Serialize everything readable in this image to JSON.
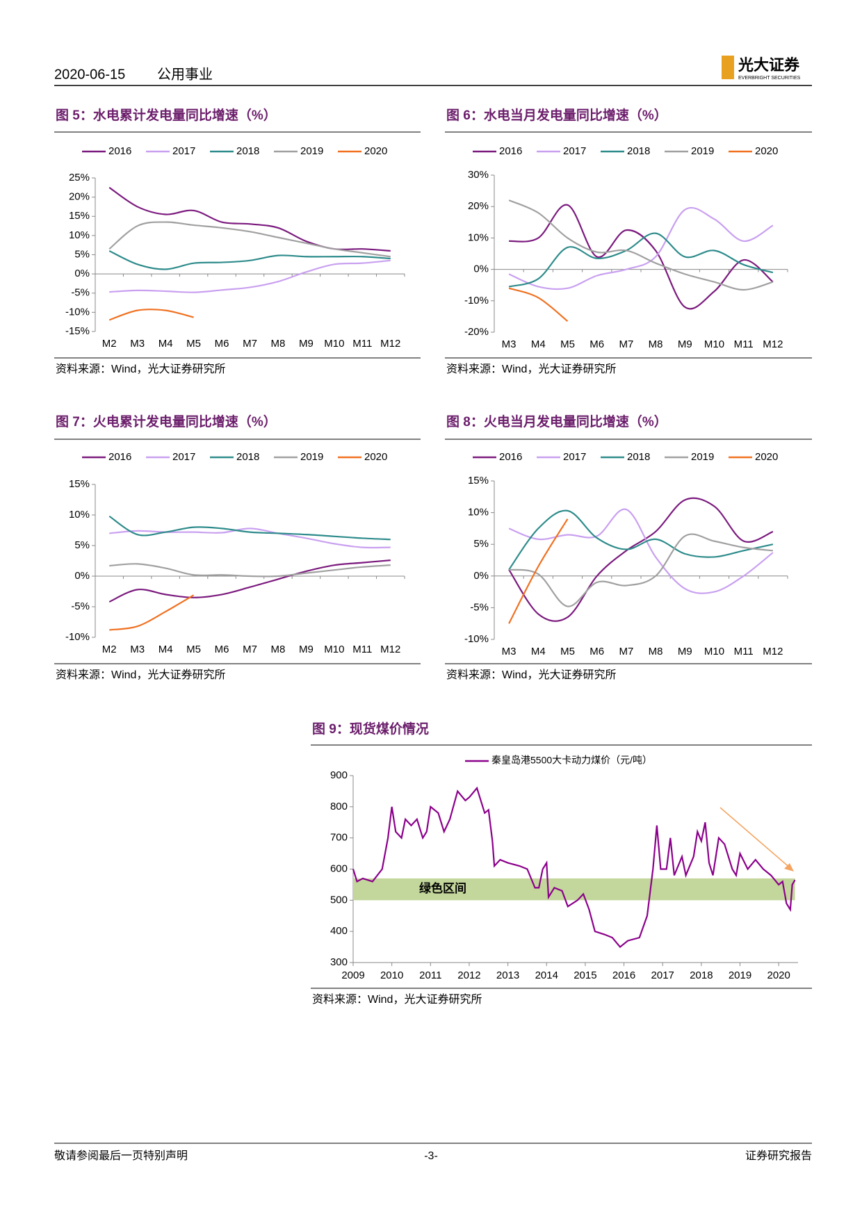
{
  "header": {
    "date": "2020-06-15",
    "sector": "公用事业",
    "logo": "光大证券",
    "logo_en": "EVERBRIGHT SECURITIES"
  },
  "chart_data": [
    {
      "type": "line",
      "title": "图 5：水电累计发电量同比增速（%）",
      "source": "资料来源：Wind，光大证券研究所",
      "categories": [
        "M2",
        "M3",
        "M4",
        "M5",
        "M6",
        "M7",
        "M8",
        "M9",
        "M10",
        "M11",
        "M12"
      ],
      "ylim": [
        -15,
        25
      ],
      "yticks": [
        {
          "value": -15,
          "label": "-15%"
        },
        {
          "value": -10,
          "label": "-10%"
        },
        {
          "value": -5,
          "label": "-5%"
        },
        {
          "value": 0,
          "label": "0%"
        },
        {
          "value": 5,
          "label": "5%"
        },
        {
          "value": 10,
          "label": "10%"
        },
        {
          "value": 15,
          "label": "15%"
        },
        {
          "value": 20,
          "label": "20%"
        },
        {
          "value": 25,
          "label": "25%"
        }
      ],
      "series": [
        {
          "name": "2016",
          "color": "#7b1a7e",
          "values": [
            22.5,
            17.5,
            15.5,
            16.5,
            13.5,
            13,
            12,
            8.5,
            6.5,
            6.5,
            6
          ]
        },
        {
          "name": "2017",
          "color": "#c9a0f0",
          "values": [
            -4.7,
            -4.3,
            -4.5,
            -4.8,
            -4.2,
            -3.5,
            -2,
            0.5,
            2.5,
            2.8,
            3.5
          ]
        },
        {
          "name": "2018",
          "color": "#2e8b8b",
          "values": [
            6,
            2.5,
            1.2,
            2.8,
            3,
            3.5,
            4.8,
            4.5,
            4.5,
            4.5,
            4
          ]
        },
        {
          "name": "2019",
          "color": "#a0a0a0",
          "values": [
            6.5,
            12.5,
            13.5,
            12.7,
            12,
            11,
            9.5,
            8,
            6.5,
            5.5,
            4.5
          ]
        },
        {
          "name": "2020",
          "color": "#f07020",
          "values": [
            -12,
            -9.5,
            -9.5,
            -11.3,
            null,
            null,
            null,
            null,
            null,
            null,
            null
          ]
        }
      ]
    },
    {
      "type": "line",
      "title": "图 6：水电当月发电量同比增速（%）",
      "source": "资料来源：Wind，光大证券研究所",
      "categories": [
        "M3",
        "M4",
        "M5",
        "M6",
        "M7",
        "M8",
        "M9",
        "M10",
        "M11",
        "M12"
      ],
      "ylim": [
        -20,
        30
      ],
      "yticks": [
        {
          "value": -20,
          "label": "-20%"
        },
        {
          "value": -10,
          "label": "-10%"
        },
        {
          "value": 0,
          "label": "0%"
        },
        {
          "value": 10,
          "label": "10%"
        },
        {
          "value": 20,
          "label": "20%"
        },
        {
          "value": 30,
          "label": "30%"
        }
      ],
      "series": [
        {
          "name": "2016",
          "color": "#7b1a7e",
          "values": [
            9,
            10,
            20.5,
            4,
            12.5,
            6,
            -12,
            -7,
            3,
            -4
          ]
        },
        {
          "name": "2017",
          "color": "#c9a0f0",
          "values": [
            -1.5,
            -5.5,
            -6,
            -2,
            0,
            4,
            19,
            16,
            9,
            14
          ]
        },
        {
          "name": "2018",
          "color": "#2e8b8b",
          "values": [
            -5.5,
            -3,
            7,
            3.5,
            6,
            11.5,
            4,
            6,
            1.5,
            -1
          ]
        },
        {
          "name": "2019",
          "color": "#a0a0a0",
          "values": [
            22,
            18,
            10,
            5.5,
            6,
            2,
            -1.5,
            -4,
            -6.5,
            -4
          ]
        },
        {
          "name": "2020",
          "color": "#f07020",
          "values": [
            -6,
            -9,
            -16.5,
            null,
            null,
            null,
            null,
            null,
            null,
            null
          ]
        }
      ]
    },
    {
      "type": "line",
      "title": "图 7：火电累计发电量同比增速（%）",
      "source": "资料来源：Wind，光大证券研究所",
      "categories": [
        "M2",
        "M3",
        "M4",
        "M5",
        "M6",
        "M7",
        "M8",
        "M9",
        "M10",
        "M11",
        "M12"
      ],
      "ylim": [
        -10,
        15
      ],
      "yticks": [
        {
          "value": -10,
          "label": "-10%"
        },
        {
          "value": -5,
          "label": "-5%"
        },
        {
          "value": 0,
          "label": "0%"
        },
        {
          "value": 5,
          "label": "5%"
        },
        {
          "value": 10,
          "label": "10%"
        },
        {
          "value": 15,
          "label": "15%"
        }
      ],
      "series": [
        {
          "name": "2016",
          "color": "#7b1a7e",
          "values": [
            -4.2,
            -2.2,
            -3,
            -3.5,
            -3,
            -1.8,
            -0.5,
            0.8,
            1.8,
            2.2,
            2.6
          ]
        },
        {
          "name": "2017",
          "color": "#c9a0f0",
          "values": [
            7,
            7.4,
            7.2,
            7.2,
            7.1,
            7.8,
            7,
            6.2,
            5.3,
            4.7,
            4.7
          ]
        },
        {
          "name": "2018",
          "color": "#2e8b8b",
          "values": [
            9.8,
            6.8,
            7.2,
            8,
            7.8,
            7.2,
            7,
            6.8,
            6.5,
            6.2,
            6
          ]
        },
        {
          "name": "2019",
          "color": "#a0a0a0",
          "values": [
            1.7,
            2,
            1.3,
            0.2,
            0.2,
            0,
            0,
            0.5,
            1,
            1.5,
            1.8
          ]
        },
        {
          "name": "2020",
          "color": "#f07020",
          "values": [
            -8.8,
            -8.2,
            -5.8,
            -3.1,
            null,
            null,
            null,
            null,
            null,
            null,
            null
          ]
        }
      ]
    },
    {
      "type": "line",
      "title": "图 8：火电当月发电量同比增速（%）",
      "source": "资料来源：Wind，光大证券研究所",
      "categories": [
        "M3",
        "M4",
        "M5",
        "M6",
        "M7",
        "M8",
        "M9",
        "M10",
        "M11",
        "M12"
      ],
      "ylim": [
        -10,
        15
      ],
      "yticks": [
        {
          "value": -10,
          "label": "-10%"
        },
        {
          "value": -5,
          "label": "-5%"
        },
        {
          "value": 0,
          "label": "0%"
        },
        {
          "value": 5,
          "label": "5%"
        },
        {
          "value": 10,
          "label": "10%"
        },
        {
          "value": 15,
          "label": "15%"
        }
      ],
      "series": [
        {
          "name": "2016",
          "color": "#7b1a7e",
          "values": [
            1,
            -6,
            -6.5,
            0,
            4,
            7,
            12,
            11,
            5.5,
            7
          ]
        },
        {
          "name": "2017",
          "color": "#c9a0f0",
          "values": [
            7.5,
            5.8,
            6.5,
            6.3,
            10.5,
            3,
            -2,
            -2.5,
            0,
            3.7
          ]
        },
        {
          "name": "2018",
          "color": "#2e8b8b",
          "values": [
            1,
            7.5,
            10.3,
            6,
            4.2,
            5.8,
            3.5,
            3,
            4,
            5
          ]
        },
        {
          "name": "2019",
          "color": "#a0a0a0",
          "values": [
            1,
            0.3,
            -4.8,
            -1,
            -1.5,
            0,
            6.3,
            5.5,
            4.5,
            4
          ]
        },
        {
          "name": "2020",
          "color": "#f07020",
          "values": [
            -7.5,
            1.5,
            9,
            null,
            null,
            null,
            null,
            null,
            null,
            null
          ]
        }
      ]
    },
    {
      "type": "timeseries",
      "title": "图 9：现货煤价情况",
      "source": "资料来源：Wind，光大证券研究所",
      "xlim": [
        2009,
        2020.5
      ],
      "xticks": [
        2009,
        2010,
        2011,
        2012,
        2013,
        2014,
        2015,
        2016,
        2017,
        2018,
        2019,
        2020
      ],
      "ylim": [
        300,
        900
      ],
      "yticks": [
        300,
        400,
        500,
        600,
        700,
        800,
        900
      ],
      "band": {
        "label": "绿色区间",
        "range": [
          500,
          570
        ],
        "color": "#c3d69b"
      },
      "series": [
        {
          "name": "秦皇岛港5500大卡动力煤价（元/吨）",
          "color": "#8b008b",
          "x": [
            2009,
            2009.1,
            2009.25,
            2009.5,
            2009.75,
            2009.9,
            2010,
            2010.1,
            2010.25,
            2010.35,
            2010.5,
            2010.65,
            2010.8,
            2010.9,
            2011,
            2011.2,
            2011.35,
            2011.5,
            2011.7,
            2011.9,
            2012,
            2012.2,
            2012.4,
            2012.5,
            2012.6,
            2012.65,
            2012.8,
            2013,
            2013.3,
            2013.5,
            2013.7,
            2013.8,
            2013.9,
            2014,
            2014.05,
            2014.2,
            2014.4,
            2014.55,
            2014.8,
            2014.95,
            2015.1,
            2015.25,
            2015.5,
            2015.7,
            2015.9,
            2016.1,
            2016.4,
            2016.6,
            2016.75,
            2016.85,
            2016.95,
            2017.1,
            2017.2,
            2017.3,
            2017.5,
            2017.6,
            2017.8,
            2017.9,
            2018,
            2018.1,
            2018.2,
            2018.3,
            2018.45,
            2018.6,
            2018.8,
            2018.9,
            2019,
            2019.2,
            2019.4,
            2019.6,
            2019.8,
            2020,
            2020.1,
            2020.2,
            2020.3,
            2020.35,
            2020.42
          ],
          "values": [
            600,
            560,
            570,
            560,
            600,
            700,
            800,
            720,
            700,
            760,
            740,
            760,
            700,
            720,
            800,
            780,
            720,
            760,
            850,
            820,
            830,
            860,
            780,
            790,
            690,
            610,
            630,
            620,
            610,
            600,
            540,
            540,
            600,
            620,
            510,
            540,
            530,
            480,
            500,
            520,
            470,
            400,
            390,
            380,
            350,
            370,
            380,
            450,
            600,
            740,
            600,
            600,
            700,
            580,
            640,
            580,
            640,
            720,
            690,
            750,
            620,
            580,
            700,
            680,
            600,
            580,
            650,
            600,
            630,
            600,
            580,
            550,
            560,
            490,
            470,
            550,
            565
          ]
        }
      ]
    }
  ],
  "footer": {
    "notice": "敬请参阅最后一页特别声明",
    "page": "-3-",
    "label": "证券研究报告"
  }
}
